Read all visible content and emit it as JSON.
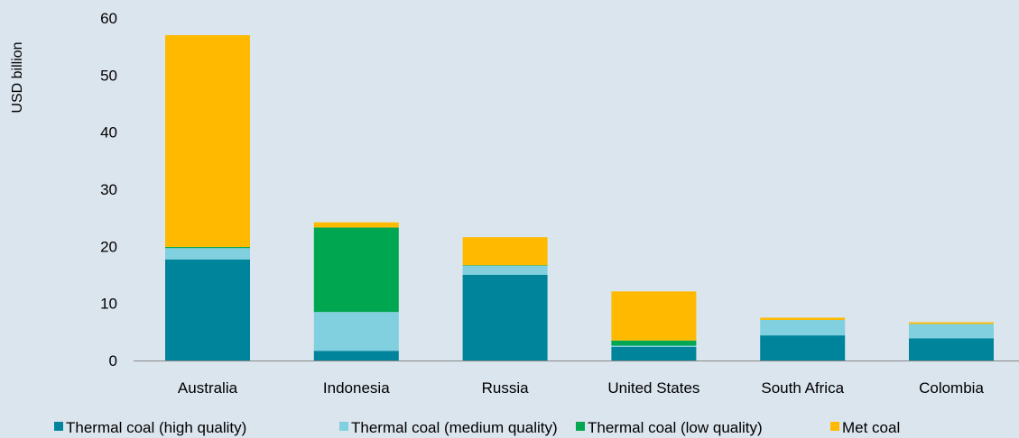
{
  "chart_data": {
    "type": "bar",
    "stacked": true,
    "ylabel": "USD billion",
    "xlabel": "",
    "ylim": [
      0,
      60
    ],
    "yticks": [
      0,
      10,
      20,
      30,
      40,
      50,
      60
    ],
    "grid": false,
    "legend_position": "bottom",
    "categories": [
      "Australia",
      "Indonesia",
      "Russia",
      "United States",
      "South Africa",
      "Colombia"
    ],
    "series": [
      {
        "name": "Thermal coal (high quality)",
        "color": "#00849b",
        "values": [
          17.7,
          1.7,
          15.0,
          2.4,
          4.4,
          3.9
        ]
      },
      {
        "name": "Thermal coal (medium quality)",
        "color": "#80d0e0",
        "values": [
          2.0,
          6.8,
          1.6,
          0.2,
          2.7,
          2.5
        ]
      },
      {
        "name": "Thermal coal (low quality)",
        "color": "#00a650",
        "values": [
          0.2,
          14.8,
          0.1,
          0.9,
          0.0,
          0.0
        ]
      },
      {
        "name": "Met coal",
        "color": "#ffba00",
        "values": [
          37.1,
          0.9,
          4.9,
          8.6,
          0.4,
          0.3
        ]
      }
    ]
  }
}
